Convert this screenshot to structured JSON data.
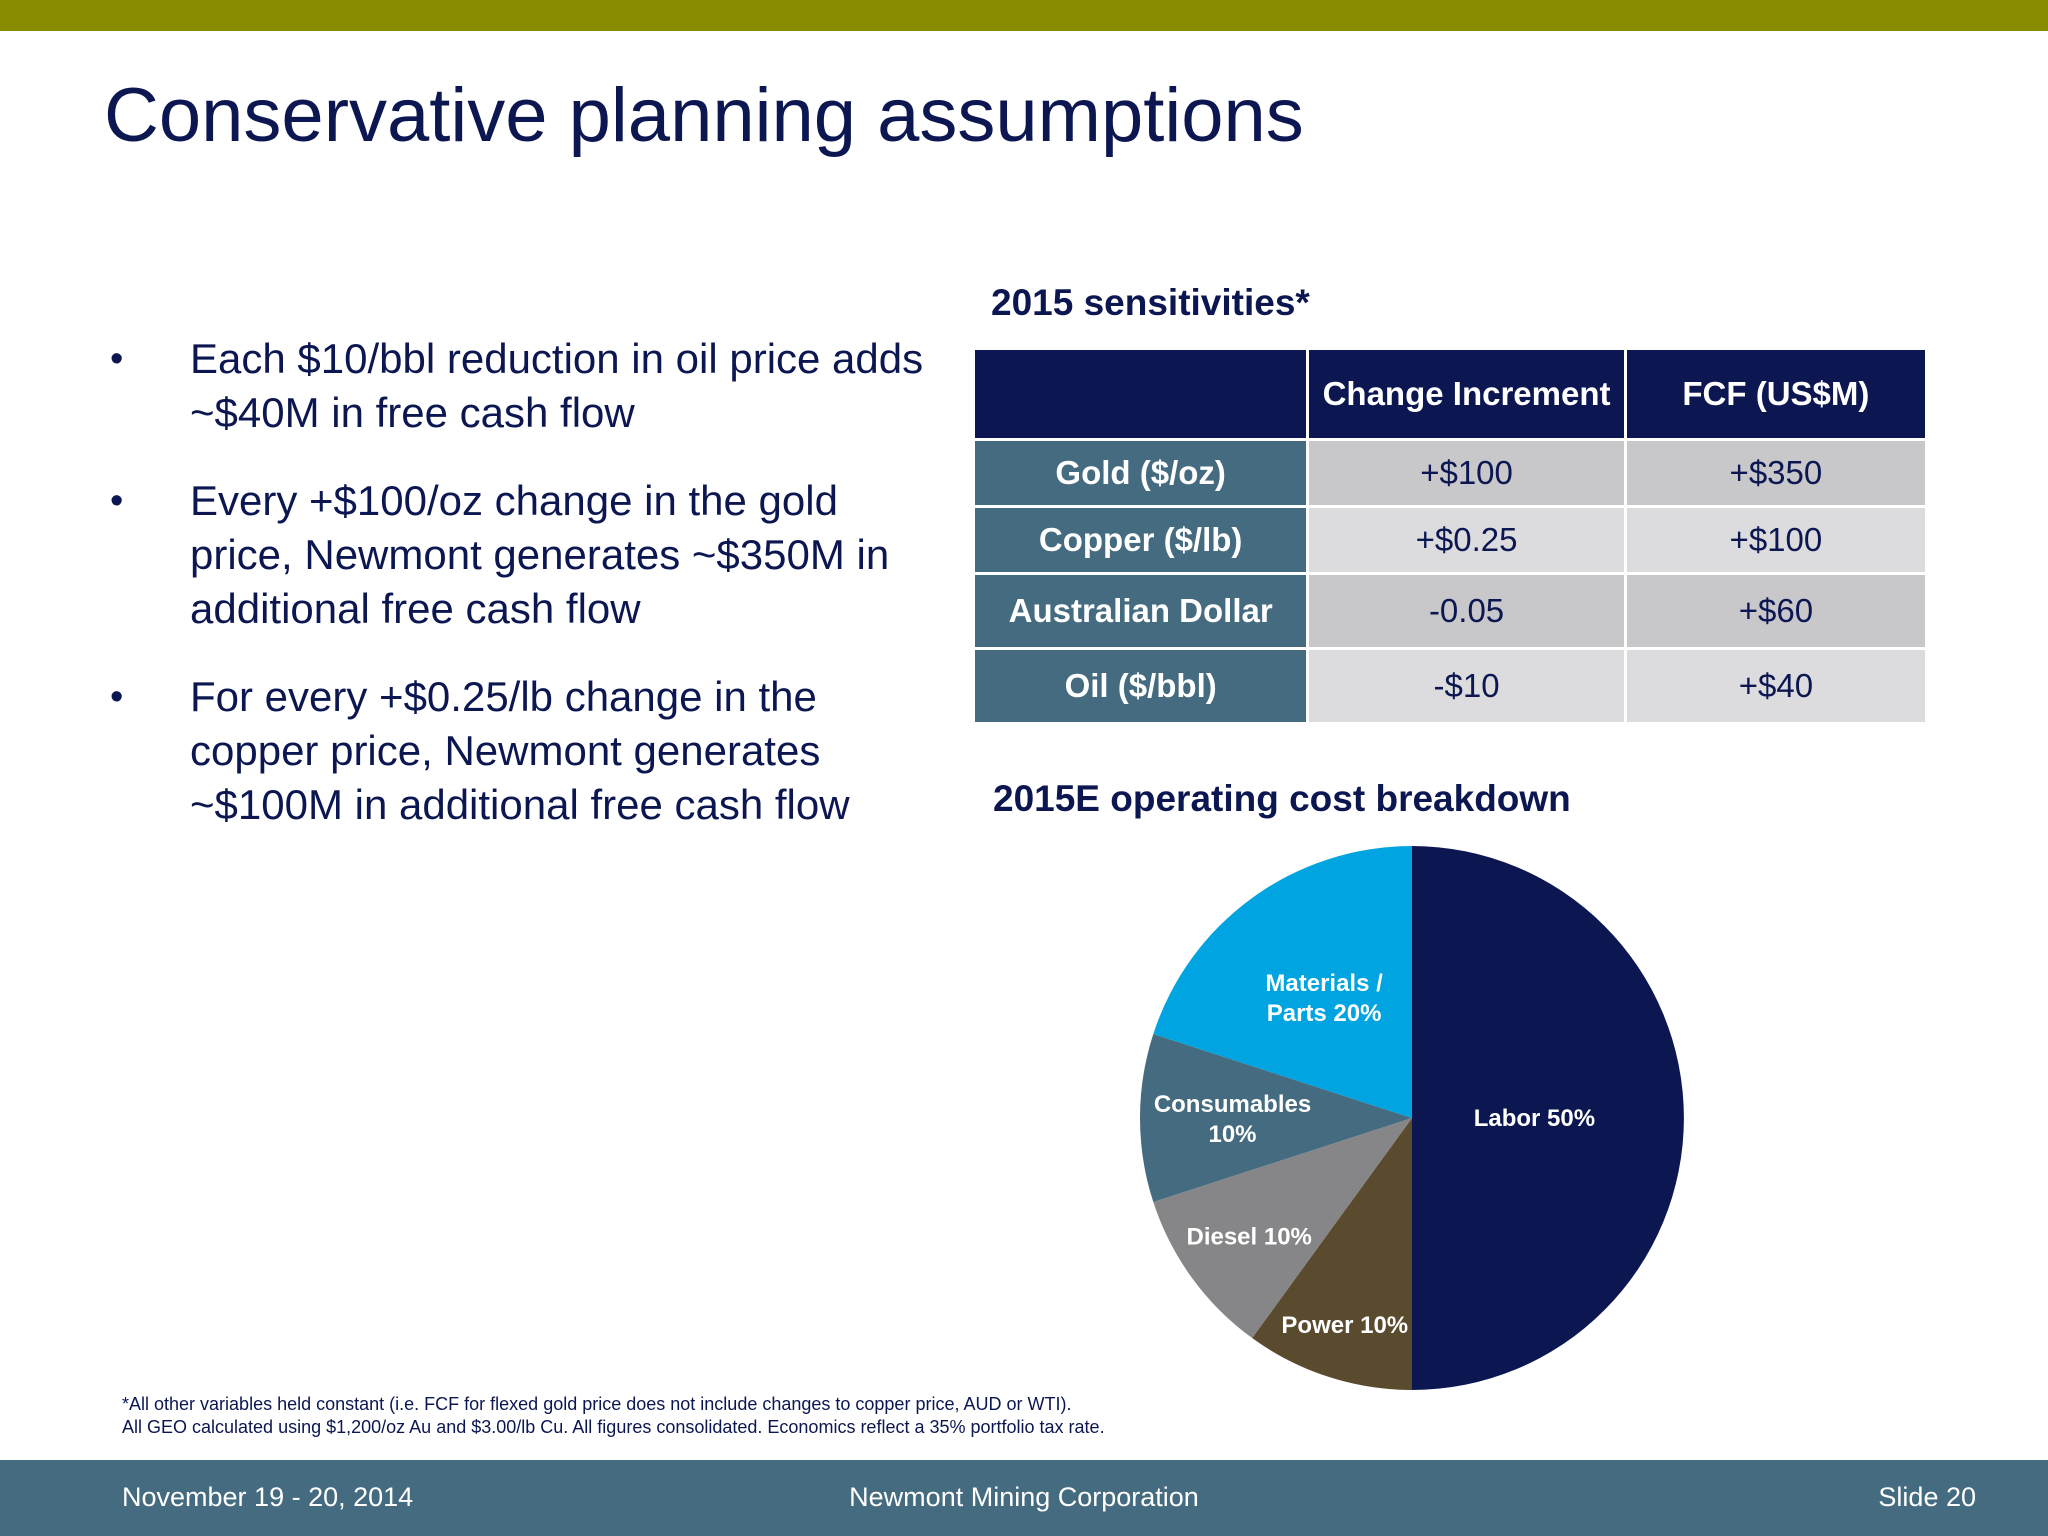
{
  "title": "Conservative planning assumptions",
  "bullets": [
    "Each $10/bbl reduction in oil price adds ~$40M in free cash flow",
    "Every +$100/oz change in the gold price, Newmont generates ~$350M in additional free cash flow",
    "For every +$0.25/lb change in the copper price, Newmont generates ~$100M in additional free cash flow"
  ],
  "bullet_glyph": "•",
  "sensitivities": {
    "title": "2015 sensitivities*",
    "headers": [
      "",
      "Change Increment",
      "FCF (US$M)"
    ],
    "rows": [
      {
        "label": "Gold ($/oz)",
        "change": "+$100",
        "fcf": "+$350"
      },
      {
        "label": "Copper ($/lb)",
        "change": "+$0.25",
        "fcf": "+$100"
      },
      {
        "label": "Australian Dollar",
        "change": "-0.05",
        "fcf": "+$60"
      },
      {
        "label": "Oil ($/bbl)",
        "change": "-$10",
        "fcf": "+$40"
      }
    ]
  },
  "chart_data": {
    "type": "pie",
    "title": "2015E operating cost breakdown",
    "slices": [
      {
        "name": "Labor",
        "label": "Labor 50%",
        "value": 50,
        "color": "#0c1752"
      },
      {
        "name": "Power",
        "label": "Power 10%",
        "value": 10,
        "color": "#5a4a2e"
      },
      {
        "name": "Diesel",
        "label": "Diesel 10%",
        "value": 10,
        "color": "#868688"
      },
      {
        "name": "Consumables",
        "label": "Consumables 10%",
        "value": 10,
        "color": "#456b80"
      },
      {
        "name": "Materials / Parts",
        "label": "Materials / Parts 20%",
        "value": 20,
        "color": "#00a4e0"
      }
    ]
  },
  "footnote": [
    "*All other variables held constant (i.e. FCF for flexed gold price does not include changes to copper price, AUD or WTI).",
    "All GEO calculated using $1,200/oz Au and $3.00/lb Cu. All figures consolidated. Economics reflect a 35% portfolio tax rate."
  ],
  "footer": {
    "date": "November 19 - 20, 2014",
    "company": "Newmont Mining Corporation",
    "slide": "Slide 20"
  },
  "colors": {
    "accent_bar": "#868b00",
    "navy": "#0c1752",
    "slate": "#456b80"
  }
}
